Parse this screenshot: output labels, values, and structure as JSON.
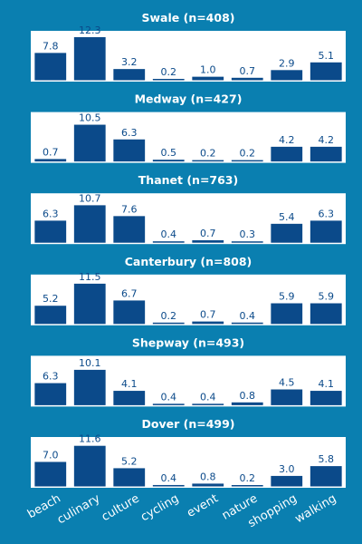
{
  "colors": {
    "background": "#0a7fb0",
    "panel": "#ffffff",
    "bar": "#0b4a8a",
    "value_label": "#0b4a8a",
    "text": "#ffffff"
  },
  "chart_data": [
    {
      "type": "bar",
      "title": "Swale (n=408)",
      "categories": [
        "beach",
        "culinary",
        "culture",
        "cycling",
        "event",
        "nature",
        "shopping",
        "walking"
      ],
      "values": [
        7.8,
        12.3,
        3.2,
        0.2,
        1.0,
        0.7,
        2.9,
        5.1
      ],
      "labels": [
        "7.8",
        "12.3",
        "3.2",
        "0.2",
        "1.0",
        "0.7",
        "2.9",
        "5.1"
      ]
    },
    {
      "type": "bar",
      "title": "Medway (n=427)",
      "categories": [
        "beach",
        "culinary",
        "culture",
        "cycling",
        "event",
        "nature",
        "shopping",
        "walking"
      ],
      "values": [
        0.7,
        10.5,
        6.3,
        0.5,
        0.2,
        0.2,
        4.2,
        4.2
      ],
      "labels": [
        "0.7",
        "10.5",
        "6.3",
        "0.5",
        "0.2",
        "0.2",
        "4.2",
        "4.2"
      ]
    },
    {
      "type": "bar",
      "title": "Thanet (n=763)",
      "categories": [
        "beach",
        "culinary",
        "culture",
        "cycling",
        "event",
        "nature",
        "shopping",
        "walking"
      ],
      "values": [
        6.3,
        10.7,
        7.6,
        0.4,
        0.7,
        0.3,
        5.4,
        6.3
      ],
      "labels": [
        "6.3",
        "10.7",
        "7.6",
        "0.4",
        "0.7",
        "0.3",
        "5.4",
        "6.3"
      ]
    },
    {
      "type": "bar",
      "title": "Canterbury (n=808)",
      "categories": [
        "beach",
        "culinary",
        "culture",
        "cycling",
        "event",
        "nature",
        "shopping",
        "walking"
      ],
      "values": [
        5.2,
        11.5,
        6.7,
        0.2,
        0.7,
        0.4,
        5.9,
        5.9
      ],
      "labels": [
        "5.2",
        "11.5",
        "6.7",
        "0.2",
        "0.7",
        "0.4",
        "5.9",
        "5.9"
      ]
    },
    {
      "type": "bar",
      "title": "Shepway (n=493)",
      "categories": [
        "beach",
        "culinary",
        "culture",
        "cycling",
        "event",
        "nature",
        "shopping",
        "walking"
      ],
      "values": [
        6.3,
        10.1,
        4.1,
        0.4,
        0.4,
        0.8,
        4.5,
        4.1
      ],
      "labels": [
        "6.3",
        "10.1",
        "4.1",
        "0.4",
        "0.4",
        "0.8",
        "4.5",
        "4.1"
      ]
    },
    {
      "type": "bar",
      "title": "Dover (n=499)",
      "categories": [
        "beach",
        "culinary",
        "culture",
        "cycling",
        "event",
        "nature",
        "shopping",
        "walking"
      ],
      "values": [
        7.0,
        11.6,
        5.2,
        0.4,
        0.8,
        0.2,
        3.0,
        5.8
      ],
      "labels": [
        "7.0",
        "11.6",
        "5.2",
        "0.4",
        "0.8",
        "0.2",
        "3.0",
        "5.8"
      ]
    }
  ]
}
